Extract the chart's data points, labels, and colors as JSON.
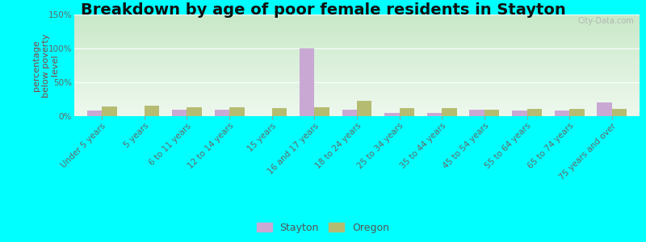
{
  "title": "Breakdown by age of poor female residents in Stayton",
  "ylabel": "percentage\nbelow poverty\nlevel",
  "categories": [
    "Under 5 years",
    "5 years",
    "6 to 11 years",
    "12 to 14 years",
    "15 years",
    "16 and 17 years",
    "18 to 24 years",
    "25 to 34 years",
    "35 to 44 years",
    "45 to 54 years",
    "55 to 64 years",
    "65 to 74 years",
    "75 years and over"
  ],
  "stayton": [
    8,
    0,
    10,
    10,
    0,
    100,
    10,
    5,
    5,
    10,
    8,
    8,
    20
  ],
  "oregon": [
    14,
    16,
    13,
    13,
    12,
    13,
    23,
    12,
    12,
    10,
    11,
    11,
    11
  ],
  "stayton_color": "#c9a8d4",
  "oregon_color": "#b5bc72",
  "plot_bg_top": "#c8e8c8",
  "plot_bg_bottom": "#e8f5e8",
  "outer_bg": "#00ffff",
  "ylim": [
    0,
    150
  ],
  "yticks": [
    0,
    50,
    100,
    150
  ],
  "ytick_labels": [
    "0%",
    "50%",
    "100%",
    "150%"
  ],
  "title_fontsize": 14,
  "axis_label_fontsize": 8,
  "tick_fontsize": 7.5,
  "bar_width": 0.35,
  "watermark": "City-Data.com"
}
